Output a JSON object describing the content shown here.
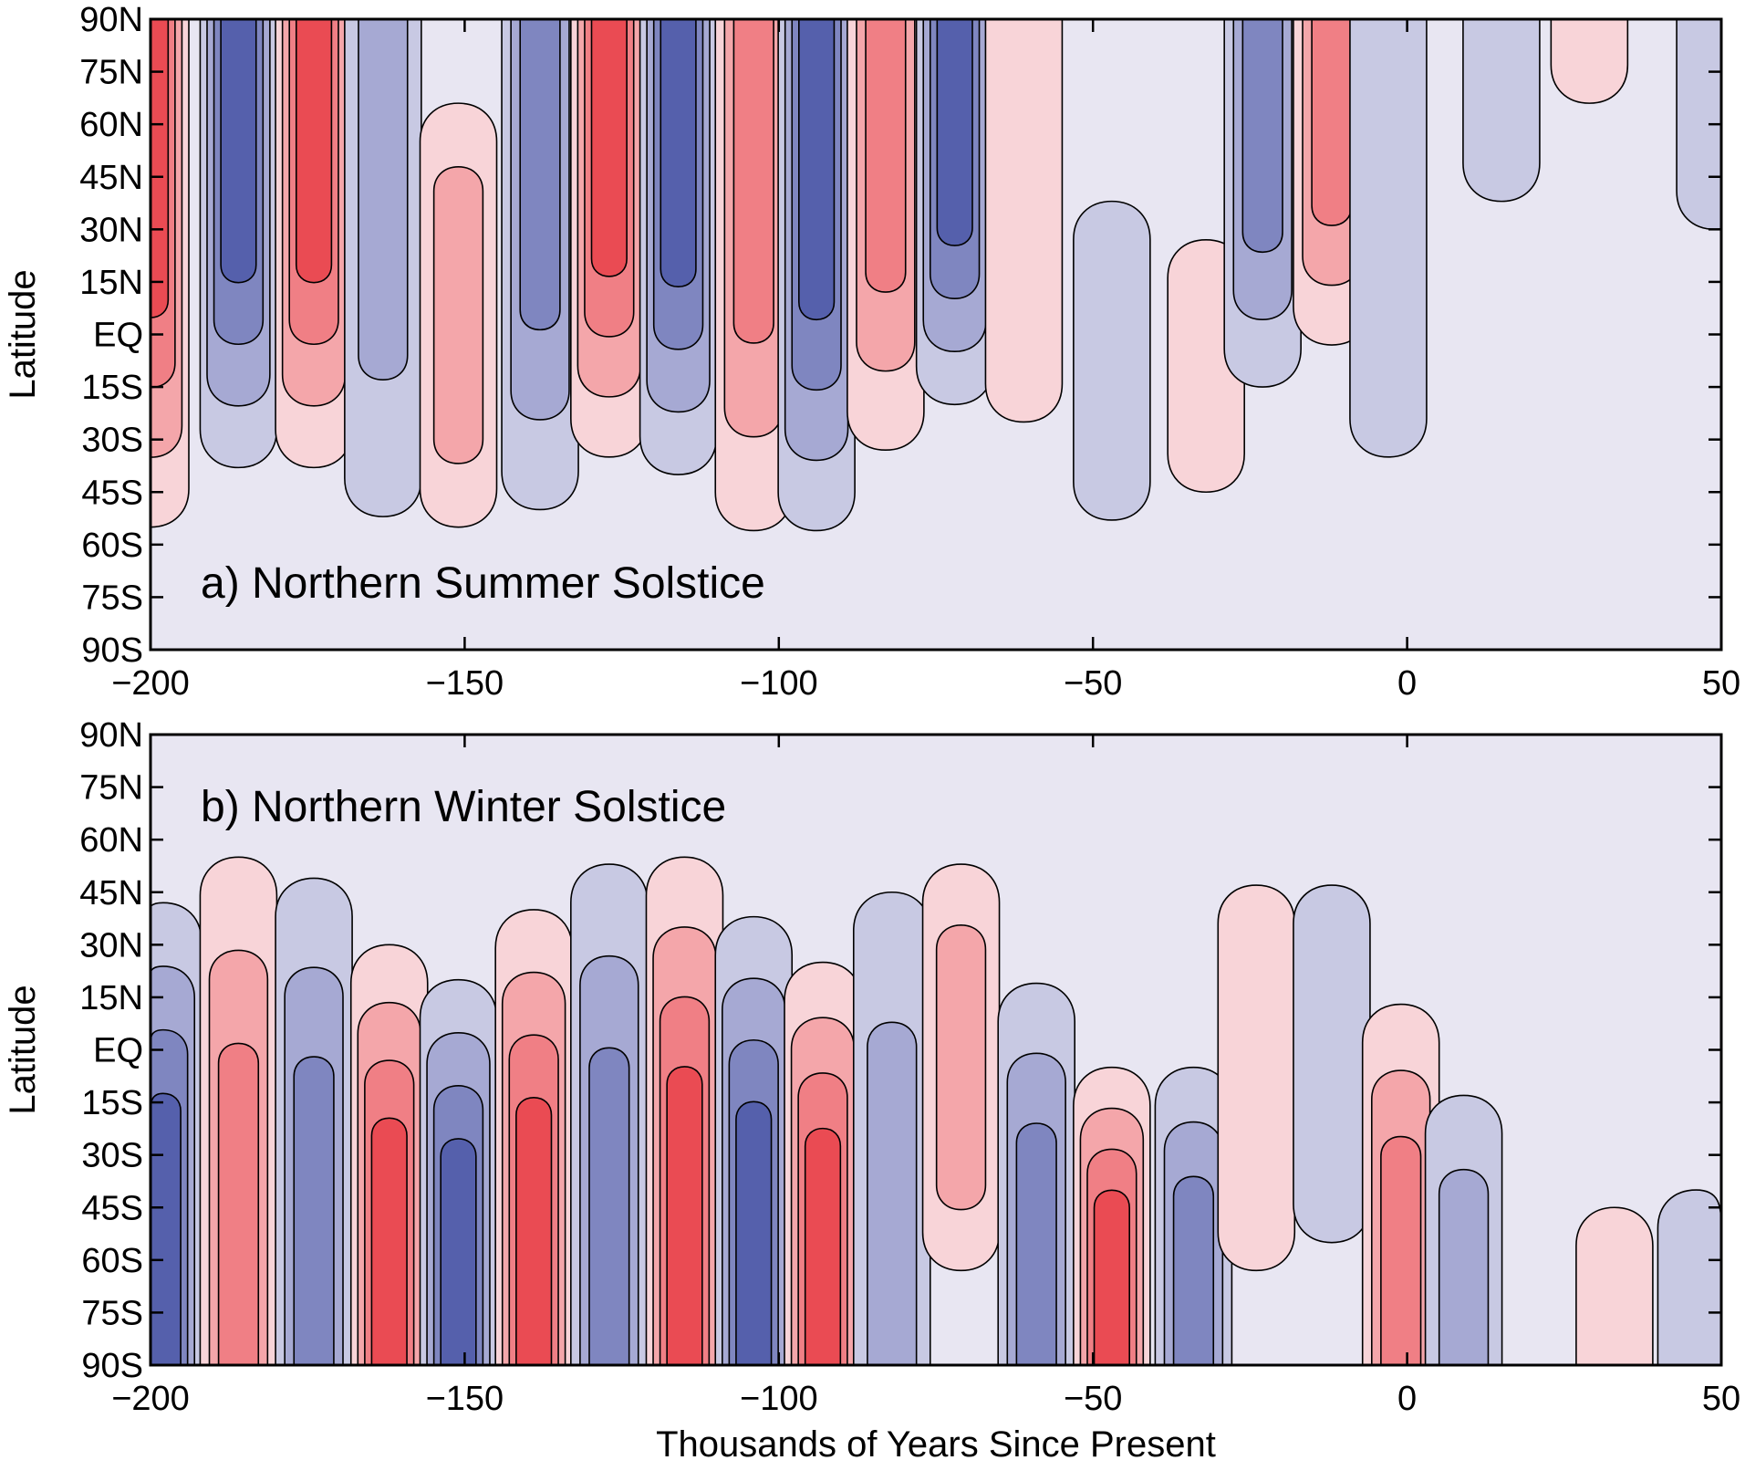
{
  "chart_data": [
    {
      "type": "contour",
      "panel": "a",
      "title": "a) Northern Summer Solstice",
      "ylabel": "Latitude",
      "xlabel": "",
      "xlim": [
        -200,
        50
      ],
      "ylim": [
        -90,
        90
      ],
      "xticks": [
        -200,
        -150,
        -100,
        -50,
        0,
        50
      ],
      "xtick_labels": [
        "−200",
        "−150",
        "−100",
        "−50",
        "0",
        "50"
      ],
      "yticks": [
        90,
        75,
        60,
        45,
        30,
        15,
        0,
        -15,
        -30,
        -45,
        -60,
        -75,
        -90
      ],
      "ytick_labels": [
        "90N",
        "75N",
        "60N",
        "45N",
        "30N",
        "15N",
        "EQ",
        "15S",
        "30S",
        "45S",
        "60S",
        "75S",
        "90S"
      ],
      "background_color": "#e8e6f2",
      "levels": [
        -4,
        -3,
        -2,
        -1,
        1,
        2,
        3,
        4
      ],
      "level_colors": {
        "-4": "#5560ac",
        "-3": "#7f86c0",
        "-2": "#a6a9d3",
        "-1": "#c8c9e3",
        "1": "#f8d4d8",
        "2": "#f4a6aa",
        "3": "#f07f85",
        "4": "#ea4b53"
      },
      "lobes": [
        {
          "x": -200,
          "sign": 1,
          "top": 90,
          "bottom": -55,
          "peak": 4
        },
        {
          "x": -186,
          "sign": -1,
          "top": 90,
          "bottom": -38,
          "peak": 4
        },
        {
          "x": -174,
          "sign": 1,
          "top": 90,
          "bottom": -38,
          "peak": 4
        },
        {
          "x": -163,
          "sign": -1,
          "top": 90,
          "bottom": -52,
          "peak": 2
        },
        {
          "x": -151,
          "sign": 1,
          "top": 66,
          "bottom": -55,
          "peak": 2
        },
        {
          "x": -138,
          "sign": -1,
          "top": 90,
          "bottom": -50,
          "peak": 3
        },
        {
          "x": -127,
          "sign": 1,
          "top": 90,
          "bottom": -35,
          "peak": 4
        },
        {
          "x": -116,
          "sign": -1,
          "top": 90,
          "bottom": -40,
          "peak": 4
        },
        {
          "x": -104,
          "sign": 1,
          "top": 90,
          "bottom": -56,
          "peak": 3
        },
        {
          "x": -94,
          "sign": -1,
          "top": 90,
          "bottom": -56,
          "peak": 4
        },
        {
          "x": -83,
          "sign": 1,
          "top": 90,
          "bottom": -33,
          "peak": 3
        },
        {
          "x": -72,
          "sign": -1,
          "top": 90,
          "bottom": -20,
          "peak": 4
        },
        {
          "x": -61,
          "sign": 1,
          "top": 90,
          "bottom": -25,
          "peak": 1
        },
        {
          "x": -47,
          "sign": -1,
          "top": 38,
          "bottom": -53,
          "peak": 1
        },
        {
          "x": -32,
          "sign": 1,
          "top": 27,
          "bottom": -45,
          "peak": 1
        },
        {
          "x": -23,
          "sign": -1,
          "top": 90,
          "bottom": -15,
          "peak": 3
        },
        {
          "x": -12,
          "sign": 1,
          "top": 90,
          "bottom": -3,
          "peak": 3
        },
        {
          "x": -3,
          "sign": -1,
          "top": 90,
          "bottom": -35,
          "peak": 1
        },
        {
          "x": 15,
          "sign": -1,
          "top": 90,
          "bottom": 38,
          "peak": 1
        },
        {
          "x": 29,
          "sign": 1,
          "top": 90,
          "bottom": 66,
          "peak": 1
        },
        {
          "x": 49,
          "sign": -1,
          "top": 90,
          "bottom": 30,
          "peak": 1
        }
      ]
    },
    {
      "type": "contour",
      "panel": "b",
      "title": "b) Northern Winter Solstice",
      "ylabel": "Latitude",
      "xlabel": "Thousands of Years Since Present",
      "xlim": [
        -200,
        50
      ],
      "ylim": [
        -90,
        90
      ],
      "xticks": [
        -200,
        -150,
        -100,
        -50,
        0,
        50
      ],
      "xtick_labels": [
        "−200",
        "−150",
        "−100",
        "−50",
        "0",
        "50"
      ],
      "yticks": [
        90,
        75,
        60,
        45,
        30,
        15,
        0,
        -15,
        -30,
        -45,
        -60,
        -75,
        -90
      ],
      "ytick_labels": [
        "90N",
        "75N",
        "60N",
        "45N",
        "30N",
        "15N",
        "EQ",
        "15S",
        "30S",
        "45S",
        "60S",
        "75S",
        "90S"
      ],
      "background_color": "#e8e6f2",
      "levels": [
        -4,
        -3,
        -2,
        -1,
        1,
        2,
        3,
        4
      ],
      "level_colors": {
        "-4": "#5560ac",
        "-3": "#7f86c0",
        "-2": "#a6a9d3",
        "-1": "#c8c9e3",
        "1": "#f8d4d8",
        "2": "#f4a6aa",
        "3": "#f07f85",
        "4": "#ea4b53"
      },
      "lobes": [
        {
          "x": -198,
          "sign": -1,
          "top": 42,
          "bottom": -90,
          "peak": 4
        },
        {
          "x": -186,
          "sign": 1,
          "top": 55,
          "bottom": -90,
          "peak": 3
        },
        {
          "x": -174,
          "sign": -1,
          "top": 49,
          "bottom": -90,
          "peak": 3
        },
        {
          "x": -162,
          "sign": 1,
          "top": 30,
          "bottom": -90,
          "peak": 4
        },
        {
          "x": -151,
          "sign": -1,
          "top": 20,
          "bottom": -90,
          "peak": 4
        },
        {
          "x": -139,
          "sign": 1,
          "top": 40,
          "bottom": -90,
          "peak": 4
        },
        {
          "x": -127,
          "sign": -1,
          "top": 53,
          "bottom": -90,
          "peak": 3
        },
        {
          "x": -115,
          "sign": 1,
          "top": 55,
          "bottom": -90,
          "peak": 4
        },
        {
          "x": -104,
          "sign": -1,
          "top": 38,
          "bottom": -90,
          "peak": 4
        },
        {
          "x": -93,
          "sign": 1,
          "top": 25,
          "bottom": -90,
          "peak": 4
        },
        {
          "x": -82,
          "sign": -1,
          "top": 45,
          "bottom": -90,
          "peak": 2
        },
        {
          "x": -71,
          "sign": 1,
          "top": 53,
          "bottom": -63,
          "peak": 2
        },
        {
          "x": -59,
          "sign": -1,
          "top": 19,
          "bottom": -90,
          "peak": 3
        },
        {
          "x": -47,
          "sign": 1,
          "top": -5,
          "bottom": -90,
          "peak": 4
        },
        {
          "x": -34,
          "sign": -1,
          "top": -5,
          "bottom": -90,
          "peak": 3
        },
        {
          "x": -24,
          "sign": 1,
          "top": 47,
          "bottom": -63,
          "peak": 1
        },
        {
          "x": -12,
          "sign": -1,
          "top": 47,
          "bottom": -55,
          "peak": 1
        },
        {
          "x": -1,
          "sign": 1,
          "top": 13,
          "bottom": -90,
          "peak": 3
        },
        {
          "x": 9,
          "sign": -1,
          "top": -13,
          "bottom": -90,
          "peak": 2
        },
        {
          "x": 33,
          "sign": 1,
          "top": -45,
          "bottom": -90,
          "peak": 1
        },
        {
          "x": 46,
          "sign": -1,
          "top": -40,
          "bottom": -90,
          "peak": 1
        }
      ]
    }
  ]
}
